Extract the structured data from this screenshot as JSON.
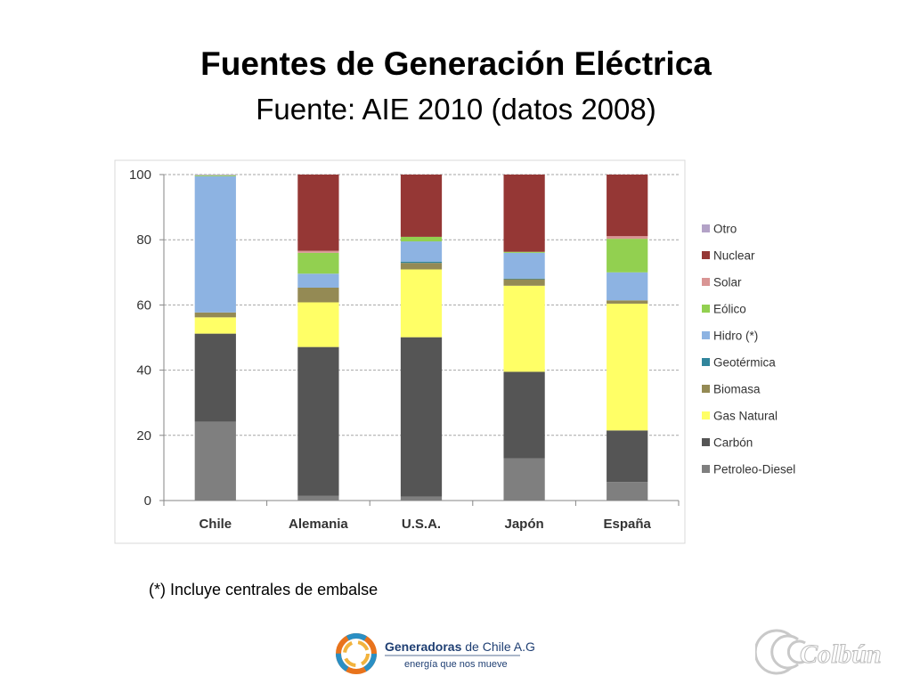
{
  "slide": {
    "title": "Fuentes de Generación Eléctrica",
    "subtitle": "Fuente: AIE 2010 (datos 2008)",
    "footnote": "(*) Incluye centrales de embalse"
  },
  "chart_data": {
    "type": "bar",
    "stacked": true,
    "title": "",
    "xlabel": "",
    "ylabel": "",
    "ylim": [
      0,
      100
    ],
    "yticks": [
      0,
      20,
      40,
      60,
      80,
      100
    ],
    "grid": true,
    "legend_position": "right",
    "categories": [
      "Chile",
      "Alemania",
      "U.S.A.",
      "Japón",
      "España"
    ],
    "series": [
      {
        "name": "Petroleo-Diesel",
        "color": "#7f7f7f",
        "values": [
          24.2,
          1.5,
          1.2,
          12.9,
          5.7
        ]
      },
      {
        "name": "Carbón",
        "color": "#555555",
        "values": [
          27.0,
          45.6,
          48.9,
          26.6,
          15.8
        ]
      },
      {
        "name": "Gas Natural",
        "color": "#ffff66",
        "values": [
          5.0,
          13.7,
          20.8,
          26.4,
          38.9
        ]
      },
      {
        "name": "Biomasa",
        "color": "#948a54",
        "values": [
          1.5,
          4.5,
          2.0,
          2.0,
          1.0
        ]
      },
      {
        "name": "Geotérmica",
        "color": "#31859c",
        "values": [
          0,
          0,
          0.4,
          0.2,
          0
        ]
      },
      {
        "name": "Hidro (*)",
        "color": "#8db3e2",
        "values": [
          41.8,
          4.3,
          6.2,
          7.9,
          8.6
        ]
      },
      {
        "name": "Eólico",
        "color": "#92d050",
        "values": [
          0.3,
          6.4,
          1.4,
          0.3,
          10.3
        ]
      },
      {
        "name": "Solar",
        "color": "#d99594",
        "values": [
          0,
          0.6,
          0,
          0,
          0.8
        ]
      },
      {
        "name": "Nuclear",
        "color": "#953735",
        "values": [
          0,
          23.4,
          19.1,
          23.7,
          18.9
        ]
      },
      {
        "name": "Otro",
        "color": "#b3a2c7",
        "values": [
          0.2,
          0,
          0,
          0,
          0
        ]
      }
    ]
  },
  "logos": {
    "generadoras_bold": "Generadoras",
    "generadoras_rest": " de Chile A.G.",
    "generadoras_tagline": "energía que nos mueve",
    "colbun": "Colbún"
  }
}
